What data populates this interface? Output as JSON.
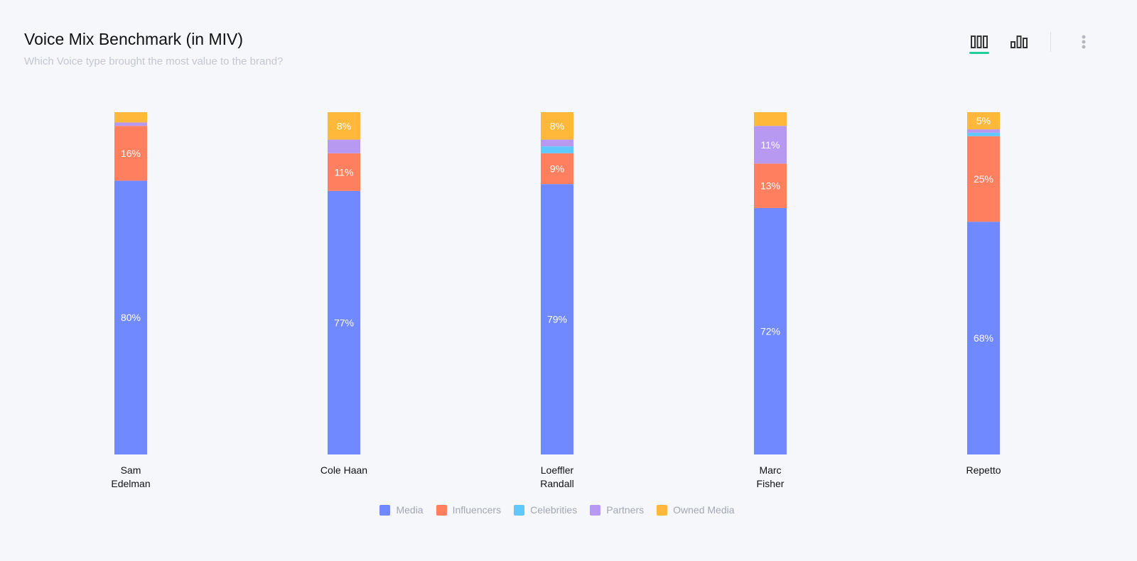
{
  "header": {
    "title": "Voice Mix Benchmark (in MIV)",
    "subtitle": "Which Voice type brought the most value to the brand?"
  },
  "toolbar": {
    "icons": [
      "stacked-bar-icon",
      "grouped-bar-icon",
      "more-vertical-icon"
    ],
    "active": "stacked-bar-icon",
    "accent": "#1ecf9a"
  },
  "chart_data": {
    "type": "bar",
    "stacked": true,
    "normalized": true,
    "title": "",
    "categories": [
      [
        "Sam",
        "Edelman"
      ],
      [
        "Cole Haan"
      ],
      [
        "Loeffler",
        "Randall"
      ],
      [
        "Marc",
        "Fisher"
      ],
      [
        "Repetto"
      ]
    ],
    "ylim": [
      0,
      100
    ],
    "grid": false,
    "legend_position": "bottom",
    "label_unit": "%",
    "series": [
      {
        "name": "Media",
        "color": "#7089ff",
        "values": [
          80,
          77,
          79,
          72,
          68
        ]
      },
      {
        "name": "Influencers",
        "color": "#ff7f5e",
        "values": [
          16,
          11,
          9,
          13,
          25
        ]
      },
      {
        "name": "Celebrities",
        "color": "#5ec8ff",
        "values": [
          0,
          0,
          2,
          0,
          1
        ]
      },
      {
        "name": "Partners",
        "color": "#b899f2",
        "values": [
          1,
          4,
          2,
          11,
          1
        ]
      },
      {
        "name": "Owned Media",
        "color": "#ffb83a",
        "values": [
          3,
          8,
          8,
          4,
          5
        ]
      }
    ]
  }
}
